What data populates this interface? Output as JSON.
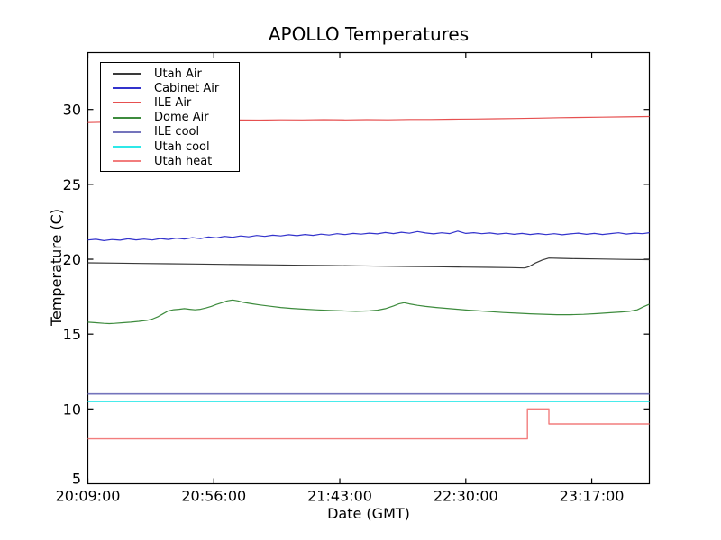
{
  "chart_data": {
    "type": "line",
    "title": "APOLLO Temperatures",
    "xlabel": "Date (GMT)",
    "ylabel": "Temperature (C)",
    "x_unit": "minutes after 20:09:00 GMT",
    "xlim": [
      0,
      209.5
    ],
    "ylim": [
      5,
      33.8
    ],
    "grid": false,
    "legend_position": "upper-left",
    "yticks": [
      5,
      10,
      15,
      20,
      25,
      30
    ],
    "xticks": [
      {
        "m": 0,
        "label": "20:09:00"
      },
      {
        "m": 47,
        "label": "20:56:00"
      },
      {
        "m": 94,
        "label": "21:43:00"
      },
      {
        "m": 141,
        "label": "22:30:00"
      },
      {
        "m": 188,
        "label": "23:17:00"
      }
    ],
    "series": [
      {
        "name": "Utah Air",
        "color": "#3a3a3a",
        "width": 1.2,
        "points": [
          [
            0,
            19.76
          ],
          [
            10,
            19.74
          ],
          [
            20,
            19.72
          ],
          [
            30,
            19.7
          ],
          [
            40,
            19.68
          ],
          [
            50,
            19.66
          ],
          [
            60,
            19.64
          ],
          [
            70,
            19.62
          ],
          [
            80,
            19.6
          ],
          [
            90,
            19.58
          ],
          [
            100,
            19.56
          ],
          [
            110,
            19.54
          ],
          [
            120,
            19.52
          ],
          [
            130,
            19.5
          ],
          [
            140,
            19.48
          ],
          [
            150,
            19.46
          ],
          [
            158,
            19.44
          ],
          [
            163,
            19.42
          ],
          [
            164.5,
            19.5
          ],
          [
            167,
            19.75
          ],
          [
            169.5,
            19.95
          ],
          [
            172,
            20.08
          ],
          [
            176,
            20.06
          ],
          [
            182,
            20.04
          ],
          [
            190,
            20.02
          ],
          [
            200,
            19.99
          ],
          [
            209.5,
            19.97
          ]
        ]
      },
      {
        "name": "Cabinet Air",
        "color": "#3333cc",
        "width": 1.2,
        "points": [
          [
            0,
            21.28
          ],
          [
            3,
            21.33
          ],
          [
            6,
            21.24
          ],
          [
            9,
            21.31
          ],
          [
            12,
            21.27
          ],
          [
            15,
            21.36
          ],
          [
            18,
            21.29
          ],
          [
            21,
            21.34
          ],
          [
            24,
            21.28
          ],
          [
            27,
            21.38
          ],
          [
            30,
            21.32
          ],
          [
            33,
            21.41
          ],
          [
            36,
            21.35
          ],
          [
            39,
            21.44
          ],
          [
            42,
            21.38
          ],
          [
            45,
            21.48
          ],
          [
            48,
            21.42
          ],
          [
            51,
            21.52
          ],
          [
            54,
            21.46
          ],
          [
            57,
            21.55
          ],
          [
            60,
            21.49
          ],
          [
            63,
            21.58
          ],
          [
            66,
            21.52
          ],
          [
            69,
            21.6
          ],
          [
            72,
            21.55
          ],
          [
            75,
            21.63
          ],
          [
            78,
            21.57
          ],
          [
            81,
            21.65
          ],
          [
            84,
            21.59
          ],
          [
            87,
            21.67
          ],
          [
            90,
            21.61
          ],
          [
            93,
            21.7
          ],
          [
            96,
            21.64
          ],
          [
            99,
            21.72
          ],
          [
            102,
            21.67
          ],
          [
            105,
            21.74
          ],
          [
            108,
            21.69
          ],
          [
            111,
            21.78
          ],
          [
            114,
            21.71
          ],
          [
            117,
            21.8
          ],
          [
            120,
            21.73
          ],
          [
            123,
            21.85
          ],
          [
            126,
            21.75
          ],
          [
            129,
            21.69
          ],
          [
            132,
            21.76
          ],
          [
            135,
            21.71
          ],
          [
            138,
            21.88
          ],
          [
            141,
            21.72
          ],
          [
            144,
            21.77
          ],
          [
            147,
            21.7
          ],
          [
            150,
            21.75
          ],
          [
            153,
            21.68
          ],
          [
            156,
            21.73
          ],
          [
            159,
            21.66
          ],
          [
            162,
            21.72
          ],
          [
            165,
            21.65
          ],
          [
            168,
            21.71
          ],
          [
            171,
            21.64
          ],
          [
            174,
            21.7
          ],
          [
            177,
            21.63
          ],
          [
            180,
            21.69
          ],
          [
            183,
            21.74
          ],
          [
            186,
            21.66
          ],
          [
            189,
            21.72
          ],
          [
            192,
            21.65
          ],
          [
            195,
            21.71
          ],
          [
            198,
            21.76
          ],
          [
            201,
            21.68
          ],
          [
            204,
            21.74
          ],
          [
            207,
            21.7
          ],
          [
            209.5,
            21.77
          ]
        ]
      },
      {
        "name": "ILE Air",
        "color": "#e65050",
        "width": 1.2,
        "points": [
          [
            0,
            29.13
          ],
          [
            8,
            29.16
          ],
          [
            16,
            29.19
          ],
          [
            24,
            29.22
          ],
          [
            32,
            29.25
          ],
          [
            40,
            29.26
          ],
          [
            48,
            29.28
          ],
          [
            56,
            29.3
          ],
          [
            64,
            29.29
          ],
          [
            72,
            29.31
          ],
          [
            80,
            29.3
          ],
          [
            88,
            29.32
          ],
          [
            96,
            29.3
          ],
          [
            104,
            29.32
          ],
          [
            112,
            29.31
          ],
          [
            120,
            29.33
          ],
          [
            128,
            29.33
          ],
          [
            136,
            29.35
          ],
          [
            144,
            29.36
          ],
          [
            152,
            29.38
          ],
          [
            160,
            29.4
          ],
          [
            168,
            29.42
          ],
          [
            176,
            29.45
          ],
          [
            184,
            29.47
          ],
          [
            192,
            29.49
          ],
          [
            200,
            29.51
          ],
          [
            209.5,
            29.53
          ]
        ]
      },
      {
        "name": "Dome Air",
        "color": "#3d8b3d",
        "width": 1.2,
        "points": [
          [
            0,
            15.8
          ],
          [
            3,
            15.76
          ],
          [
            6,
            15.72
          ],
          [
            8,
            15.7
          ],
          [
            10,
            15.72
          ],
          [
            13,
            15.76
          ],
          [
            16,
            15.8
          ],
          [
            19,
            15.85
          ],
          [
            22,
            15.92
          ],
          [
            24,
            16.0
          ],
          [
            26,
            16.15
          ],
          [
            28,
            16.35
          ],
          [
            30,
            16.55
          ],
          [
            32,
            16.63
          ],
          [
            34,
            16.66
          ],
          [
            36,
            16.7
          ],
          [
            38,
            16.66
          ],
          [
            40,
            16.62
          ],
          [
            42,
            16.66
          ],
          [
            44,
            16.74
          ],
          [
            46,
            16.85
          ],
          [
            48,
            16.98
          ],
          [
            50,
            17.1
          ],
          [
            52,
            17.22
          ],
          [
            54,
            17.28
          ],
          [
            56,
            17.22
          ],
          [
            58,
            17.12
          ],
          [
            61,
            17.03
          ],
          [
            64,
            16.95
          ],
          [
            68,
            16.86
          ],
          [
            72,
            16.78
          ],
          [
            76,
            16.72
          ],
          [
            80,
            16.67
          ],
          [
            85,
            16.62
          ],
          [
            90,
            16.58
          ],
          [
            95,
            16.55
          ],
          [
            100,
            16.52
          ],
          [
            105,
            16.55
          ],
          [
            108,
            16.6
          ],
          [
            111,
            16.7
          ],
          [
            114,
            16.88
          ],
          [
            116,
            17.02
          ],
          [
            118,
            17.1
          ],
          [
            120,
            17.02
          ],
          [
            123,
            16.92
          ],
          [
            126,
            16.85
          ],
          [
            130,
            16.78
          ],
          [
            134,
            16.72
          ],
          [
            138,
            16.66
          ],
          [
            142,
            16.6
          ],
          [
            146,
            16.55
          ],
          [
            150,
            16.5
          ],
          [
            155,
            16.44
          ],
          [
            160,
            16.4
          ],
          [
            165,
            16.36
          ],
          [
            170,
            16.33
          ],
          [
            175,
            16.3
          ],
          [
            180,
            16.3
          ],
          [
            185,
            16.32
          ],
          [
            190,
            16.37
          ],
          [
            195,
            16.43
          ],
          [
            199,
            16.48
          ],
          [
            202,
            16.52
          ],
          [
            205,
            16.62
          ],
          [
            207,
            16.8
          ],
          [
            209.5,
            17.0
          ]
        ]
      },
      {
        "name": "ILE cool",
        "color": "#7474bc",
        "width": 1.6,
        "points": [
          [
            0,
            11.0
          ],
          [
            209.5,
            11.0
          ]
        ]
      },
      {
        "name": "Utah cool",
        "color": "#2fe8e8",
        "width": 1.8,
        "points": [
          [
            0,
            10.5
          ],
          [
            209.5,
            10.5
          ]
        ]
      },
      {
        "name": "Utah heat",
        "color": "#f27d7d",
        "width": 1.4,
        "points": [
          [
            0,
            8.0
          ],
          [
            164,
            8.0
          ],
          [
            164,
            10.0
          ],
          [
            172,
            10.0
          ],
          [
            172,
            9.0
          ],
          [
            209.5,
            9.0
          ]
        ]
      }
    ]
  }
}
